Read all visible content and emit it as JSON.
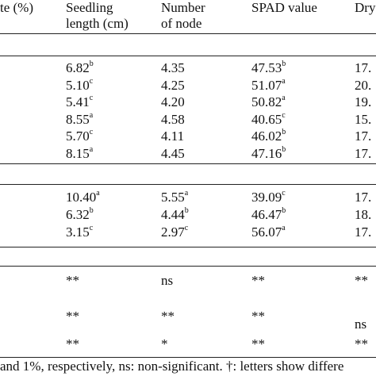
{
  "header": {
    "col1": "te (%)",
    "col2_line1": "Seedling",
    "col2_line2": "length (cm)",
    "col3_line1": "Number",
    "col3_line2": "of node",
    "col4": "SPAD value",
    "col5": "Dry"
  },
  "group1": [
    {
      "length": "6.82",
      "length_sup": "b",
      "node": "4.35",
      "node_sup": "",
      "spad": "47.53",
      "spad_sup": "b",
      "dry": "17."
    },
    {
      "length": "5.10",
      "length_sup": "c",
      "node": "4.25",
      "node_sup": "",
      "spad": "51.07",
      "spad_sup": "a",
      "dry": "20."
    },
    {
      "length": "5.41",
      "length_sup": "c",
      "node": "4.20",
      "node_sup": "",
      "spad": "50.82",
      "spad_sup": "a",
      "dry": "19."
    },
    {
      "length": "8.55",
      "length_sup": "a",
      "node": "4.58",
      "node_sup": "",
      "spad": "40.65",
      "spad_sup": "c",
      "dry": "15."
    },
    {
      "length": "5.70",
      "length_sup": "c",
      "node": "4.11",
      "node_sup": "",
      "spad": "46.02",
      "spad_sup": "b",
      "dry": "17."
    },
    {
      "length": "8.15",
      "length_sup": "a",
      "node": "4.45",
      "node_sup": "",
      "spad": "47.16",
      "spad_sup": "b",
      "dry": "17."
    }
  ],
  "group2": [
    {
      "length": "10.40",
      "length_sup": "a",
      "node": "5.55",
      "node_sup": "a",
      "spad": "39.09",
      "spad_sup": "c",
      "dry": "17."
    },
    {
      "length": "6.32",
      "length_sup": "b",
      "node": "4.44",
      "node_sup": "b",
      "spad": "46.47",
      "spad_sup": "b",
      "dry": "18."
    },
    {
      "length": "3.15",
      "length_sup": "c",
      "node": "2.97",
      "node_sup": "c",
      "spad": "56.07",
      "spad_sup": "a",
      "dry": "17."
    }
  ],
  "significance": [
    {
      "length": "**",
      "node": "ns",
      "spad": "**",
      "dry": "**"
    },
    {
      "length": "**",
      "node": "**",
      "spad": "**",
      "dry": "ns"
    },
    {
      "length": "**",
      "node": "*",
      "spad": "**",
      "dry": "**"
    }
  ],
  "footnote": "and 1%, respectively, ns: non-significant. †: letters show differe"
}
